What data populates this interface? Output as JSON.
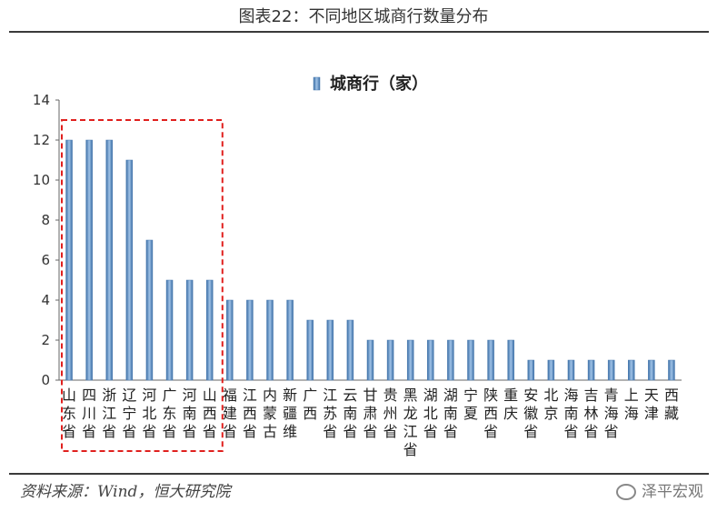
{
  "page": {
    "title": "图表22：不同地区城商行数量分布",
    "source": "资料来源：Wind，恒大研究院",
    "watermark": "泽平宏观"
  },
  "chart_data": {
    "type": "bar",
    "title": "",
    "legend": [
      "城商行（家）"
    ],
    "legend_position": "top-center",
    "categories": [
      "山东省",
      "四川省",
      "浙江省",
      "辽宁省",
      "河北省",
      "广东省",
      "河南省",
      "山西省",
      "福建省",
      "江西省",
      "内蒙古",
      "新疆维",
      "广西",
      "江苏省",
      "云南省",
      "甘肃省",
      "贵州省",
      "黑龙江省",
      "湖北省",
      "湖南省",
      "宁夏",
      "陕西省",
      "重庆",
      "安徽省",
      "北京",
      "海南省",
      "吉林省",
      "青海省",
      "上海",
      "天津",
      "西藏"
    ],
    "series": [
      {
        "name": "城商行（家）",
        "color": "#4f81bd",
        "values": [
          12,
          12,
          12,
          11,
          7,
          5,
          5,
          5,
          4,
          4,
          4,
          4,
          3,
          3,
          3,
          2,
          2,
          2,
          2,
          2,
          2,
          2,
          2,
          1,
          1,
          1,
          1,
          1,
          1,
          1,
          1
        ]
      }
    ],
    "ylim": [
      0,
      14
    ],
    "yticks": [
      0,
      2,
      4,
      6,
      8,
      10,
      12,
      14
    ],
    "grid": false,
    "highlight_box": {
      "from_category": "山东省",
      "to_category": "山西省",
      "color": "#e0201e",
      "style": "dashed"
    }
  }
}
